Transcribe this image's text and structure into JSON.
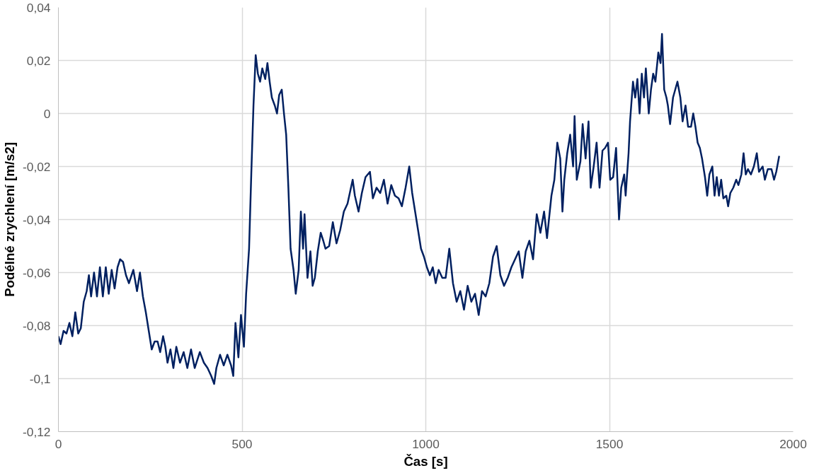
{
  "chart_data": {
    "type": "line",
    "xlabel": "Čas [s]",
    "ylabel": "Podélné zrychlení [m/s2]",
    "xlim": [
      0,
      2000
    ],
    "xticks": [
      0,
      500,
      1000,
      1500,
      2000
    ],
    "ylim": [
      -0.12,
      0.04
    ],
    "yticks": [
      {
        "value": -0.12,
        "label": "-0,12"
      },
      {
        "value": -0.1,
        "label": "-0,1"
      },
      {
        "value": -0.08,
        "label": "-0,08"
      },
      {
        "value": -0.06,
        "label": "-0,06"
      },
      {
        "value": -0.04,
        "label": "-0,04"
      },
      {
        "value": -0.02,
        "label": "-0,02"
      },
      {
        "value": 0,
        "label": "0"
      },
      {
        "value": 0.02,
        "label": "0,02"
      },
      {
        "value": 0.04,
        "label": "0,04"
      }
    ],
    "grid": true,
    "marker": "none",
    "line_style": "solid",
    "series": [
      {
        "color": "#002060",
        "x": [
          0,
          6,
          14,
          22,
          30,
          38,
          46,
          54,
          61,
          69,
          77,
          83,
          89,
          97,
          105,
          113,
          121,
          129,
          137,
          145,
          153,
          161,
          168,
          176,
          184,
          192,
          204,
          214,
          222,
          230,
          238,
          246,
          254,
          262,
          270,
          277,
          285,
          291,
          297,
          305,
          313,
          321,
          331,
          341,
          351,
          361,
          371,
          385,
          396,
          406,
          416,
          424,
          430,
          440,
          450,
          460,
          470,
          476,
          482,
          490,
          497,
          505,
          511,
          519,
          525,
          531,
          537,
          543,
          549,
          555,
          563,
          569,
          575,
          581,
          589,
          595,
          601,
          608,
          614,
          620,
          626,
          632,
          640,
          646,
          654,
          660,
          666,
          670,
          678,
          686,
          692,
          698,
          706,
          714,
          721,
          727,
          737,
          747,
          757,
          767,
          777,
          787,
          801,
          807,
          817,
          826,
          836,
          848,
          856,
          866,
          876,
          886,
          896,
          906,
          916,
          926,
          935,
          945,
          955,
          963,
          971,
          979,
          987,
          995,
          1003,
          1011,
          1019,
          1027,
          1035,
          1045,
          1054,
          1064,
          1074,
          1084,
          1094,
          1104,
          1114,
          1124,
          1134,
          1144,
          1153,
          1163,
          1173,
          1183,
          1193,
          1203,
          1213,
          1223,
          1233,
          1243,
          1253,
          1263,
          1272,
          1282,
          1292,
          1302,
          1312,
          1322,
          1330,
          1342,
          1350,
          1358,
          1366,
          1372,
          1377,
          1385,
          1393,
          1401,
          1405,
          1411,
          1421,
          1427,
          1435,
          1443,
          1449,
          1457,
          1465,
          1473,
          1481,
          1488,
          1496,
          1502,
          1510,
          1518,
          1526,
          1532,
          1540,
          1544,
          1552,
          1556,
          1564,
          1570,
          1576,
          1582,
          1588,
          1594,
          1599,
          1607,
          1613,
          1619,
          1625,
          1633,
          1639,
          1643,
          1649,
          1655,
          1659,
          1665,
          1673,
          1679,
          1685,
          1693,
          1699,
          1707,
          1714,
          1722,
          1728,
          1734,
          1740,
          1746,
          1752,
          1760,
          1766,
          1772,
          1780,
          1786,
          1792,
          1798,
          1804,
          1810,
          1818,
          1823,
          1829,
          1837,
          1845,
          1851,
          1859,
          1865,
          1871,
          1877,
          1885,
          1893,
          1901,
          1907,
          1917,
          1923,
          1931,
          1941,
          1948,
          1954,
          1962
        ],
        "values": [
          -0.084,
          -0.087,
          -0.082,
          -0.083,
          -0.079,
          -0.084,
          -0.075,
          -0.083,
          -0.081,
          -0.071,
          -0.067,
          -0.061,
          -0.069,
          -0.06,
          -0.069,
          -0.058,
          -0.069,
          -0.058,
          -0.068,
          -0.059,
          -0.066,
          -0.058,
          -0.055,
          -0.056,
          -0.061,
          -0.064,
          -0.059,
          -0.067,
          -0.06,
          -0.069,
          -0.075,
          -0.082,
          -0.089,
          -0.086,
          -0.086,
          -0.09,
          -0.084,
          -0.088,
          -0.094,
          -0.089,
          -0.096,
          -0.088,
          -0.094,
          -0.09,
          -0.096,
          -0.089,
          -0.096,
          -0.09,
          -0.094,
          -0.096,
          -0.099,
          -0.102,
          -0.096,
          -0.091,
          -0.095,
          -0.091,
          -0.095,
          -0.099,
          -0.079,
          -0.092,
          -0.076,
          -0.088,
          -0.068,
          -0.051,
          -0.023,
          0.003,
          0.022,
          0.015,
          0.012,
          0.017,
          0.013,
          0.019,
          0.012,
          0.006,
          0.003,
          0.0,
          0.007,
          0.009,
          0.0,
          -0.008,
          -0.028,
          -0.051,
          -0.059,
          -0.068,
          -0.059,
          -0.037,
          -0.051,
          -0.038,
          -0.062,
          -0.052,
          -0.065,
          -0.062,
          -0.052,
          -0.045,
          -0.048,
          -0.051,
          -0.05,
          -0.041,
          -0.049,
          -0.044,
          -0.037,
          -0.034,
          -0.025,
          -0.031,
          -0.037,
          -0.03,
          -0.024,
          -0.022,
          -0.032,
          -0.028,
          -0.03,
          -0.025,
          -0.034,
          -0.027,
          -0.031,
          -0.032,
          -0.035,
          -0.028,
          -0.02,
          -0.03,
          -0.037,
          -0.044,
          -0.051,
          -0.054,
          -0.058,
          -0.061,
          -0.058,
          -0.064,
          -0.059,
          -0.062,
          -0.062,
          -0.051,
          -0.064,
          -0.071,
          -0.067,
          -0.074,
          -0.065,
          -0.071,
          -0.068,
          -0.076,
          -0.067,
          -0.069,
          -0.064,
          -0.054,
          -0.05,
          -0.061,
          -0.065,
          -0.062,
          -0.058,
          -0.055,
          -0.052,
          -0.062,
          -0.052,
          -0.048,
          -0.055,
          -0.038,
          -0.045,
          -0.037,
          -0.047,
          -0.031,
          -0.025,
          -0.011,
          -0.017,
          -0.037,
          -0.025,
          -0.015,
          -0.008,
          -0.02,
          -0.001,
          -0.025,
          -0.018,
          -0.004,
          -0.017,
          -0.003,
          -0.028,
          -0.02,
          -0.011,
          -0.028,
          -0.014,
          -0.013,
          -0.011,
          -0.025,
          -0.024,
          -0.013,
          -0.04,
          -0.028,
          -0.023,
          -0.031,
          -0.015,
          -0.003,
          0.012,
          0.006,
          0.013,
          0.0,
          0.015,
          0.006,
          0.017,
          0.0,
          0.009,
          0.015,
          0.012,
          0.023,
          0.019,
          0.03,
          0.009,
          0.006,
          0.003,
          -0.004,
          0.006,
          0.009,
          0.012,
          0.006,
          -0.003,
          0.003,
          -0.005,
          -0.005,
          0.0,
          -0.005,
          -0.011,
          -0.013,
          -0.017,
          -0.024,
          -0.031,
          -0.023,
          -0.02,
          -0.031,
          -0.024,
          -0.031,
          -0.025,
          -0.032,
          -0.031,
          -0.035,
          -0.03,
          -0.028,
          -0.025,
          -0.027,
          -0.023,
          -0.015,
          -0.023,
          -0.021,
          -0.023,
          -0.02,
          -0.015,
          -0.022,
          -0.02,
          -0.025,
          -0.021,
          -0.021,
          -0.025,
          -0.022,
          -0.016
        ]
      }
    ]
  }
}
